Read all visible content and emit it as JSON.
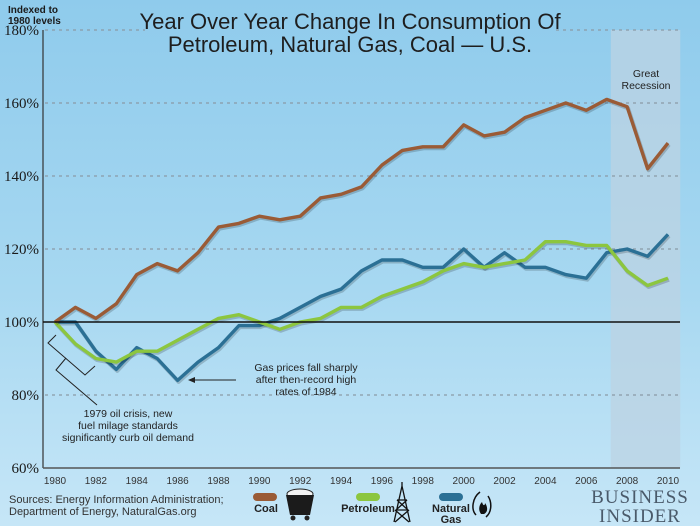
{
  "header": {
    "y_unit_note": "Indexed to 1980 levels",
    "title_line1": "Year Over Year Change In Consumption Of",
    "title_line2": "Petroleum, Natural Gas, Coal — U.S."
  },
  "annotations": {
    "recession": [
      "Great",
      "Recession"
    ],
    "gas_prices": [
      "Gas prices fall sharply",
      "after then-record high",
      "rates of 1984"
    ],
    "oil_crisis": [
      "1979 oil crisis, new",
      "fuel milage standards",
      "significantly curb oil demand"
    ]
  },
  "footer": {
    "sources_line1": "Sources: Energy Information Administration;",
    "sources_line2": "Department of Energy, NaturalGas.org",
    "brand_line1": "BUSINESS",
    "brand_line2": "INSIDER"
  },
  "legend": [
    {
      "label": "Coal",
      "color": "#9a5b36",
      "icon": "coal-cart-icon"
    },
    {
      "label": "Petroleum",
      "color": "#8cc63f",
      "icon": "oil-derrick-icon"
    },
    {
      "label": "Natural Gas",
      "color": "#2b7095",
      "icon": "gas-flame-icon"
    }
  ],
  "chart_data": {
    "type": "line",
    "title": "Year Over Year Change In Consumption Of Petroleum, Natural Gas, Coal — U.S.",
    "xlabel": "",
    "ylabel": "Indexed to 1980 levels",
    "x": [
      1980,
      1981,
      1982,
      1983,
      1984,
      1985,
      1986,
      1987,
      1988,
      1989,
      1990,
      1991,
      1992,
      1993,
      1994,
      1995,
      1996,
      1997,
      1998,
      1999,
      2000,
      2001,
      2002,
      2003,
      2004,
      2005,
      2006,
      2007,
      2008,
      2009,
      2010
    ],
    "x_ticks": [
      "1980",
      "1982",
      "1984",
      "1986",
      "1988",
      "1990",
      "1992",
      "1994",
      "1996",
      "1998",
      "2000",
      "2002",
      "2004",
      "2006",
      "2008",
      "2010"
    ],
    "y_ticks": [
      "60%",
      "80%",
      "100%",
      "120%",
      "140%",
      "160%",
      "180%"
    ],
    "y_tick_values": [
      60,
      80,
      100,
      120,
      140,
      160,
      180
    ],
    "ylim": [
      60,
      180
    ],
    "xlim": [
      1980,
      2010
    ],
    "baseline": 100,
    "grid": "horizontal dashed",
    "shaded_region": {
      "label": "Great Recession",
      "from": 2007.2,
      "to": 2010.6
    },
    "series": [
      {
        "name": "Coal",
        "color": "#9a5b36",
        "values": [
          100,
          104,
          101,
          105,
          113,
          116,
          114,
          119,
          126,
          127,
          129,
          128,
          129,
          134,
          135,
          137,
          143,
          147,
          148,
          148,
          154,
          151,
          152,
          156,
          158,
          160,
          158,
          161,
          159,
          142,
          149
        ]
      },
      {
        "name": "Petroleum",
        "color": "#8cc63f",
        "values": [
          100,
          94,
          90,
          89,
          92,
          92,
          95,
          98,
          101,
          102,
          100,
          98,
          100,
          101,
          104,
          104,
          107,
          109,
          111,
          114,
          116,
          115,
          116,
          117,
          122,
          122,
          121,
          121,
          114,
          110,
          112
        ]
      },
      {
        "name": "Natural Gas",
        "color": "#2b7095",
        "values": [
          100,
          100,
          92,
          87,
          93,
          90,
          84,
          89,
          93,
          99,
          99,
          101,
          104,
          107,
          109,
          114,
          117,
          117,
          115,
          115,
          120,
          115,
          119,
          115,
          115,
          113,
          112,
          119,
          120,
          118,
          124
        ]
      }
    ]
  }
}
